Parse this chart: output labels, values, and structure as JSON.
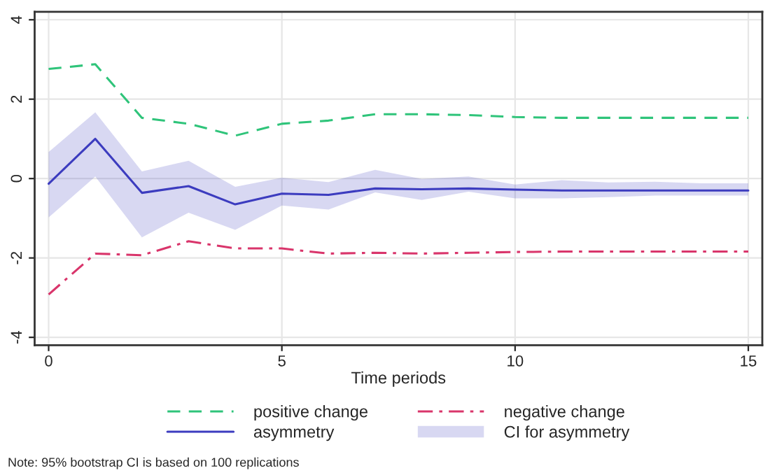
{
  "chart_data": {
    "type": "line",
    "xlabel": "Time periods",
    "x": [
      0,
      1,
      2,
      3,
      4,
      5,
      6,
      7,
      8,
      9,
      10,
      11,
      12,
      13,
      14,
      15
    ],
    "series": [
      {
        "name": "positive change",
        "color": "#2fc47a",
        "line_style": "dashed",
        "values": [
          2.76,
          2.88,
          1.53,
          1.38,
          1.08,
          1.38,
          1.46,
          1.62,
          1.62,
          1.6,
          1.55,
          1.53,
          1.53,
          1.53,
          1.53,
          1.53
        ]
      },
      {
        "name": "negative change",
        "color": "#d9356b",
        "line_style": "dashdot",
        "values": [
          -2.92,
          -1.89,
          -1.93,
          -1.58,
          -1.76,
          -1.76,
          -1.89,
          -1.87,
          -1.89,
          -1.87,
          -1.85,
          -1.84,
          -1.84,
          -1.84,
          -1.84,
          -1.84
        ]
      },
      {
        "name": "asymmetry",
        "color": "#3c3cbf",
        "line_style": "solid",
        "values": [
          -0.13,
          1.0,
          -0.36,
          -0.19,
          -0.65,
          -0.38,
          -0.41,
          -0.25,
          -0.27,
          -0.25,
          -0.28,
          -0.3,
          -0.3,
          -0.3,
          -0.3,
          -0.3
        ],
        "lower": [
          -0.98,
          0.05,
          -1.48,
          -0.86,
          -1.29,
          -0.68,
          -0.78,
          -0.35,
          -0.54,
          -0.33,
          -0.5,
          -0.5,
          -0.47,
          -0.43,
          -0.43,
          -0.43
        ],
        "upper": [
          0.67,
          1.67,
          0.18,
          0.45,
          -0.21,
          0.02,
          -0.09,
          0.22,
          -0.01,
          0.05,
          -0.15,
          -0.04,
          -0.1,
          -0.08,
          -0.12,
          -0.12
        ]
      }
    ],
    "xlim": [
      -0.3,
      15.3
    ],
    "ylim": [
      -4.2,
      4.2
    ],
    "xticks": [
      0,
      5,
      10,
      15
    ],
    "yticks": [
      -4,
      -2,
      0,
      2,
      4
    ],
    "grid": true,
    "legend": "bottom",
    "annotations": [
      "CI for asymmetry",
      "Note: 95% bootstrap CI is based on 100 replications"
    ]
  }
}
